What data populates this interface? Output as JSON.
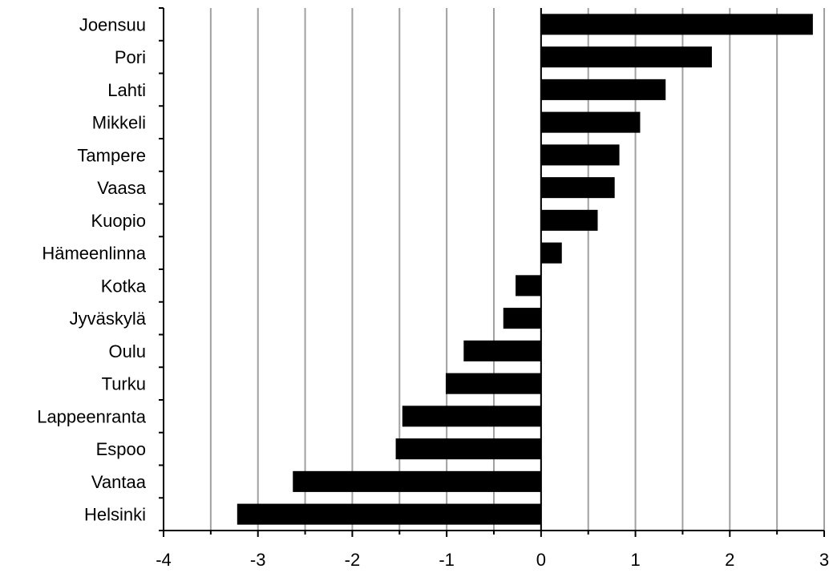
{
  "chart_data": {
    "type": "bar",
    "orientation": "horizontal",
    "categories": [
      "Joensuu",
      "Pori",
      "Lahti",
      "Mikkeli",
      "Tampere",
      "Vaasa",
      "Kuopio",
      "Hämeenlinna",
      "Kotka",
      "Jyväskylä",
      "Oulu",
      "Turku",
      "Lappeenranta",
      "Espoo",
      "Vantaa",
      "Helsinki"
    ],
    "values": [
      2.88,
      1.81,
      1.32,
      1.05,
      0.83,
      0.78,
      0.6,
      0.22,
      -0.27,
      -0.4,
      -0.82,
      -1.01,
      -1.47,
      -1.54,
      -2.63,
      -3.22
    ],
    "title": "",
    "xlabel": "",
    "ylabel": "",
    "xlim": [
      -4,
      3
    ],
    "x_ticks": [
      "-4",
      "-3",
      "-2",
      "-1",
      "0",
      "1",
      "2",
      "3"
    ],
    "grid": true,
    "bar_color": "#000000",
    "grid_color": "#a0a0a0"
  }
}
